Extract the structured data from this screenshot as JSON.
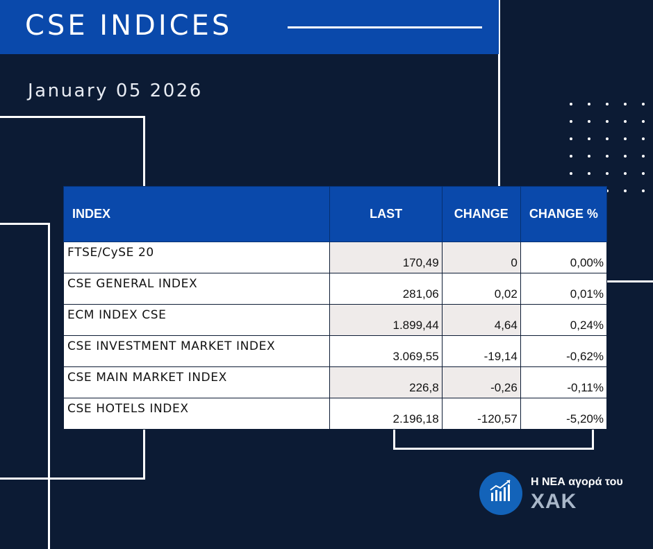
{
  "header": {
    "title": "CSE INDICES"
  },
  "date": "January 05 2026",
  "table": {
    "columns": [
      "INDEX",
      "LAST",
      "CHANGE",
      "CHANGE %"
    ],
    "rows": [
      {
        "name": "FTSE/CySE 20",
        "last": "170,49",
        "change": "0",
        "pct": "0,00%",
        "trend": "pos"
      },
      {
        "name": "CSE GENERAL INDEX",
        "last": "281,06",
        "change": "0,02",
        "pct": "0,01%",
        "trend": "pos"
      },
      {
        "name": "ECM INDEX CSE",
        "last": "1.899,44",
        "change": "4,64",
        "pct": "0,24%",
        "trend": "pos"
      },
      {
        "name": "CSE INVESTMENT MARKET INDEX",
        "last": "3.069,55",
        "change": "-19,14",
        "pct": "-0,62%",
        "trend": "neg"
      },
      {
        "name": "CSE MAIN MARKET INDEX",
        "last": "226,8",
        "change": "-0,26",
        "pct": "-0,11%",
        "trend": "neg"
      },
      {
        "name": "CSE HOTELS INDEX",
        "last": "2.196,18",
        "change": "-120,57",
        "pct": "-5,20%",
        "trend": "neg"
      }
    ]
  },
  "logo": {
    "line1": "Η ΝΕΑ αγορά του",
    "line2": "ΧΑΚ",
    "icon": "bar-chart-icon"
  },
  "colors": {
    "background": "#0c1b34",
    "accent": "#0a49ab",
    "positive": "#2e8a1f",
    "negative": "#e8111a"
  }
}
